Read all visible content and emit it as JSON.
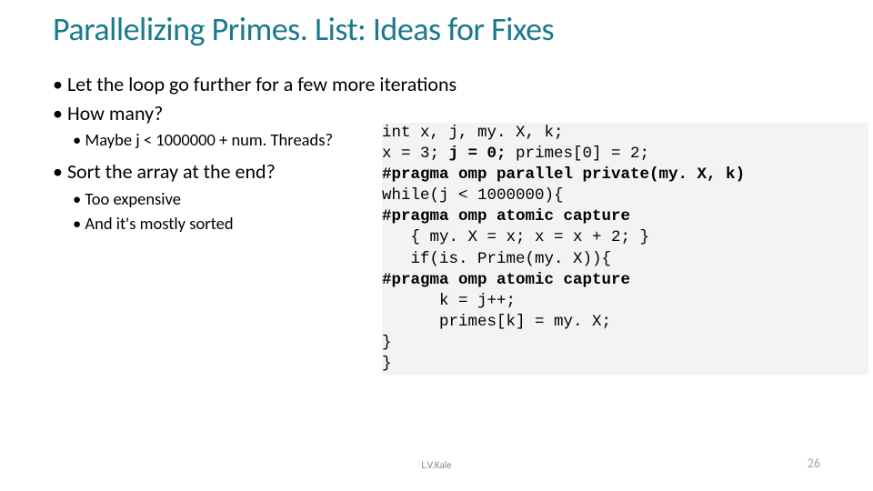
{
  "title": {
    "text": "Parallelizing Primes. List: Ideas for Fixes",
    "color": "#1a7a8c",
    "fontsize": 36
  },
  "bullets": [
    {
      "level": 1,
      "text": "Let the loop go further for a few more iterations"
    },
    {
      "level": 1,
      "text": "How many?"
    },
    {
      "level": 2,
      "text": "Maybe j < 1000000 + num. Threads?"
    },
    {
      "level": 1,
      "text": "Sort the array at the end?"
    },
    {
      "level": 2,
      "text": "Too expensive"
    },
    {
      "level": 2,
      "text": "And it's mostly sorted"
    }
  ],
  "code": {
    "background": "#f3f3f3",
    "fontsize": 17.5,
    "lines": [
      {
        "segs": [
          {
            "t": "int x, j, my. X, k;"
          }
        ]
      },
      {
        "segs": [
          {
            "t": "x = 3; "
          },
          {
            "t": "j = 0;",
            "b": true
          },
          {
            "t": " primes[0] = 2;"
          }
        ]
      },
      {
        "segs": [
          {
            "t": "#pragma omp parallel private(my. X, k)",
            "b": true
          }
        ]
      },
      {
        "segs": [
          {
            "t": "while(j < 1000000){"
          }
        ]
      },
      {
        "segs": [
          {
            "t": "#pragma omp atomic capture",
            "b": true
          }
        ]
      },
      {
        "segs": [
          {
            "t": "   { my. X = x; x = x + 2; }"
          }
        ]
      },
      {
        "segs": [
          {
            "t": "   if(is. Prime(my. X)){"
          }
        ]
      },
      {
        "segs": [
          {
            "t": "#pragma omp atomic capture",
            "b": true
          }
        ]
      },
      {
        "segs": [
          {
            "t": "      k = j++;"
          }
        ]
      },
      {
        "segs": [
          {
            "t": "      primes[k] = my. X;"
          }
        ]
      },
      {
        "segs": [
          {
            "t": "}"
          }
        ]
      },
      {
        "segs": [
          {
            "t": "}"
          }
        ]
      }
    ]
  },
  "footer": {
    "author": "L.V.Kale",
    "page": "26",
    "author_color": "#888888",
    "page_color": "#b8a088"
  }
}
